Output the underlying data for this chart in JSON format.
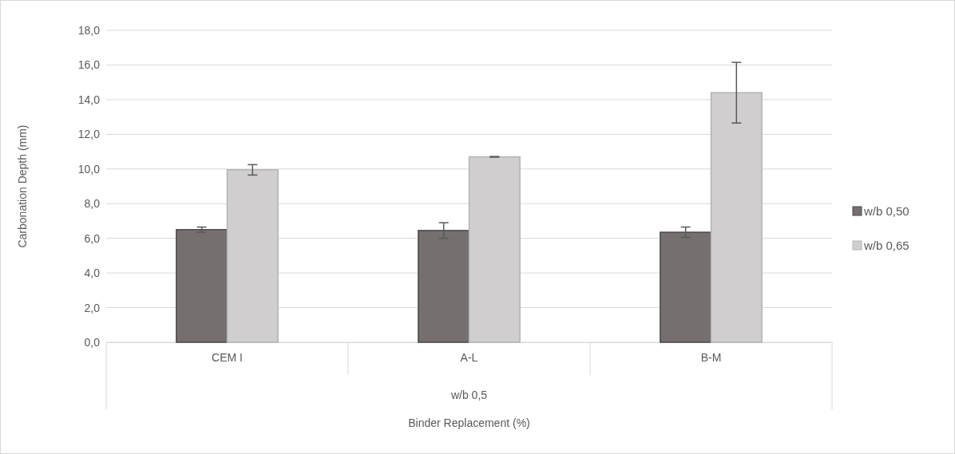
{
  "chart_data": {
    "type": "bar",
    "xlabel": "Binder Replacement (%)",
    "ylabel": "Carbonation Depth (mm)",
    "categories": [
      "CEM I",
      "A-L",
      "B-M"
    ],
    "annotations": [
      "w/b 0,5"
    ],
    "series": [
      {
        "name": "w/b 0,50",
        "color": "#75706f",
        "values": [
          6.5,
          6.45,
          6.35
        ],
        "errors": [
          0.15,
          0.45,
          0.3
        ]
      },
      {
        "name": "w/b 0,65",
        "color": "#d0cecf",
        "values": [
          9.95,
          10.7,
          14.4
        ],
        "errors": [
          0.3,
          0.02,
          1.75
        ]
      }
    ],
    "ylim": [
      0,
      18
    ],
    "yticks": [
      {
        "value": 0,
        "label": "0,0"
      },
      {
        "value": 2,
        "label": "2,0"
      },
      {
        "value": 4,
        "label": "4,0"
      },
      {
        "value": 6,
        "label": "6,0"
      },
      {
        "value": 8,
        "label": "8,0"
      },
      {
        "value": 10,
        "label": "10,0"
      },
      {
        "value": 12,
        "label": "12,0"
      },
      {
        "value": 14,
        "label": "14,0"
      },
      {
        "value": 16,
        "label": "16,0"
      },
      {
        "value": 18,
        "label": "18,0"
      }
    ],
    "grid": "y",
    "legend": "right"
  }
}
